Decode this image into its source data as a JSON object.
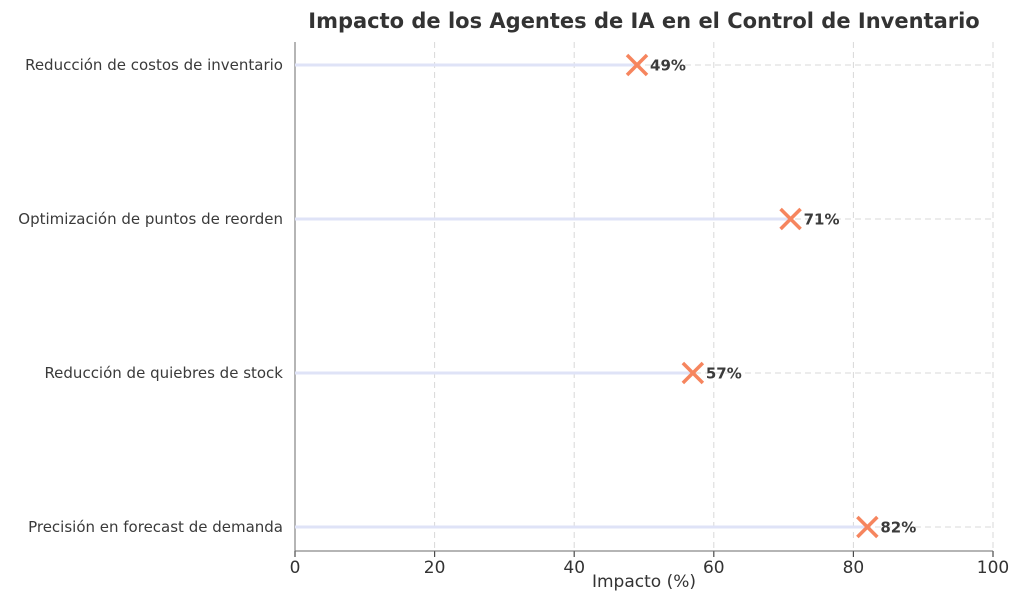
{
  "chart_data": {
    "type": "lollipop",
    "orientation": "horizontal",
    "title": "Impacto de los Agentes de IA en el Control de Inventario",
    "xlabel": "Impacto (%)",
    "ylabel": "",
    "categories": [
      "Reducción de costos de inventario",
      "Optimización de puntos de reorden",
      "Reducción de quiebres de stock",
      "Precisión en forecast de demanda"
    ],
    "values": [
      49,
      71,
      57,
      82
    ],
    "value_labels": [
      "49%",
      "71%",
      "57%",
      "82%"
    ],
    "xlim": [
      0,
      100
    ],
    "xticks": [
      0,
      20,
      40,
      60,
      80,
      100
    ],
    "xtick_labels": [
      "0",
      "20",
      "40",
      "60",
      "80",
      "100"
    ],
    "grid": "dashed, both axes",
    "legend": "none",
    "marker": "x",
    "colors": {
      "stem": "#dfe3f7",
      "marker": "#f6855e",
      "grid": "#d8d8d8",
      "spine": "#6b6b6b",
      "tick": "#4a4a4a",
      "title_text": "#333333",
      "label_text": "#3a3a3a",
      "value_text": "#3b3b3b",
      "background": "#ffffff"
    }
  }
}
